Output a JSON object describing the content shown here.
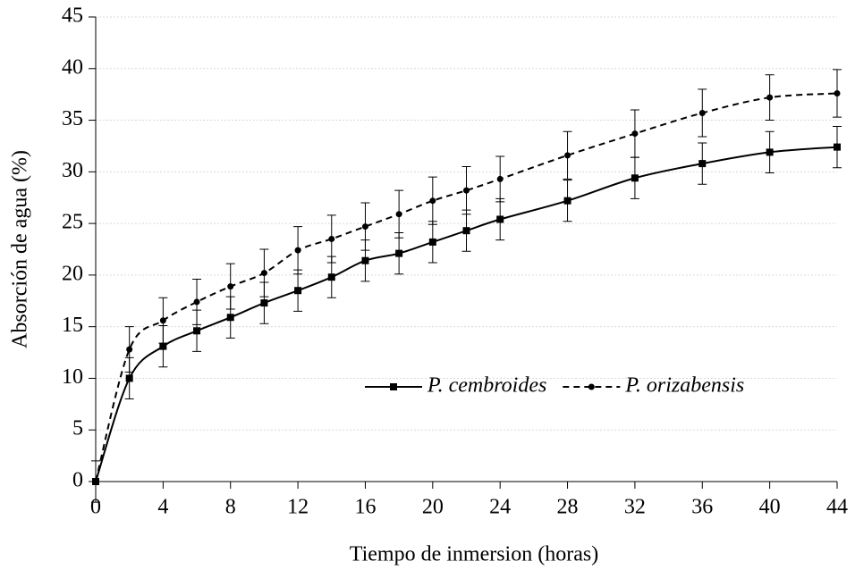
{
  "chart_data": {
    "type": "line",
    "xlabel": "Tiempo de inmersion (horas)",
    "ylabel": "Absorción de agua (%)",
    "x": [
      0,
      2,
      4,
      6,
      8,
      10,
      12,
      14,
      16,
      18,
      20,
      22,
      24,
      28,
      32,
      36,
      40,
      44
    ],
    "series": [
      {
        "name": "P. cembroides",
        "color": "#000000",
        "line_style": "solid",
        "marker": "square",
        "values": [
          0,
          10,
          13.1,
          14.6,
          15.9,
          17.3,
          18.5,
          19.8,
          21.4,
          22.1,
          23.2,
          24.3,
          25.4,
          27.2,
          29.4,
          30.8,
          31.9,
          32.4
        ],
        "errors": [
          0,
          2,
          2,
          2,
          2,
          2,
          2,
          2,
          2,
          2,
          2,
          2,
          2,
          2,
          2,
          2,
          2,
          2
        ]
      },
      {
        "name": "P. orizabensis",
        "color": "#000000",
        "line_style": "dashed",
        "marker": "circle",
        "values": [
          0,
          12.8,
          15.6,
          17.4,
          18.9,
          20.2,
          22.4,
          23.5,
          24.7,
          25.9,
          27.2,
          28.2,
          29.3,
          31.6,
          33.7,
          35.7,
          37.2,
          37.6
        ],
        "errors": [
          2,
          2.2,
          2.2,
          2.2,
          2.2,
          2.3,
          2.3,
          2.3,
          2.3,
          2.3,
          2.3,
          2.3,
          2.2,
          2.3,
          2.3,
          2.3,
          2.2,
          2.3
        ]
      }
    ],
    "xlim": [
      0,
      44
    ],
    "xticks": [
      0,
      4,
      8,
      12,
      16,
      20,
      24,
      28,
      32,
      36,
      40,
      44
    ],
    "ylim": [
      0,
      45
    ],
    "yticks": [
      0,
      5,
      10,
      15,
      20,
      25,
      30,
      35,
      40,
      45
    ],
    "grid": true,
    "legend": "right"
  }
}
